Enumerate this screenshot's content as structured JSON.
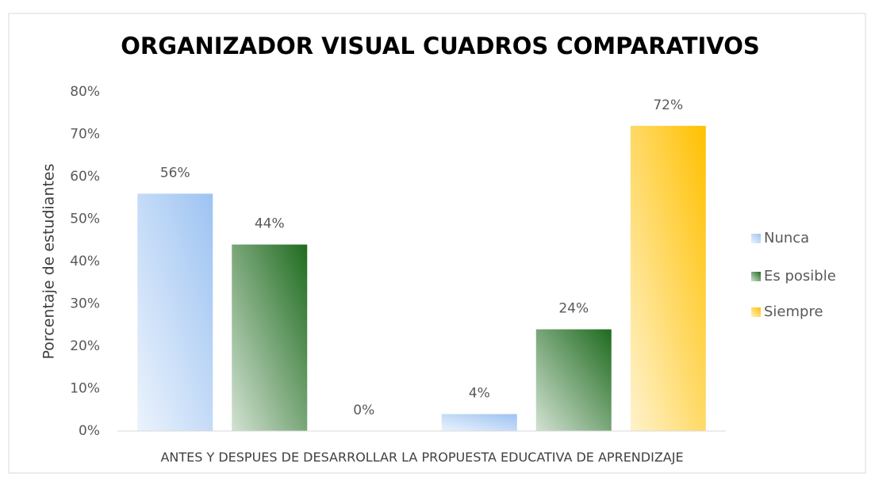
{
  "chart_data": {
    "type": "bar",
    "title": "ORGANIZADOR VISUAL CUADROS COMPARATIVOS",
    "x_label": "ANTES Y DESPUES DE DESARROLLAR LA PROPUESTA EDUCATIVA DE APRENDIZAJE",
    "y_label": "Porcentaje de estudiantes",
    "categories": [
      null,
      null
    ],
    "series": [
      {
        "name": "Nunca",
        "color": "#9dc3f2",
        "values": [
          56,
          4
        ],
        "value_labels": [
          "56%",
          "4%"
        ]
      },
      {
        "name": "Es posible",
        "color": "#1f6b1f",
        "values": [
          44,
          24
        ],
        "value_labels": [
          "44%",
          "24%"
        ]
      },
      {
        "name": "Siempre",
        "color": "#ffc000",
        "values": [
          0,
          72
        ],
        "value_labels": [
          "0%",
          "72%"
        ]
      }
    ],
    "ylim": [
      0,
      80
    ],
    "yticks": [
      {
        "value": 0,
        "label": "0%"
      },
      {
        "value": 10,
        "label": "10%"
      },
      {
        "value": 20,
        "label": "20%"
      },
      {
        "value": 30,
        "label": "30%"
      },
      {
        "value": 40,
        "label": "40%"
      },
      {
        "value": 50,
        "label": "50%"
      },
      {
        "value": 60,
        "label": "60%"
      },
      {
        "value": 70,
        "label": "70%"
      },
      {
        "value": 80,
        "label": "80%"
      }
    ],
    "grid": false,
    "legend": "right"
  }
}
